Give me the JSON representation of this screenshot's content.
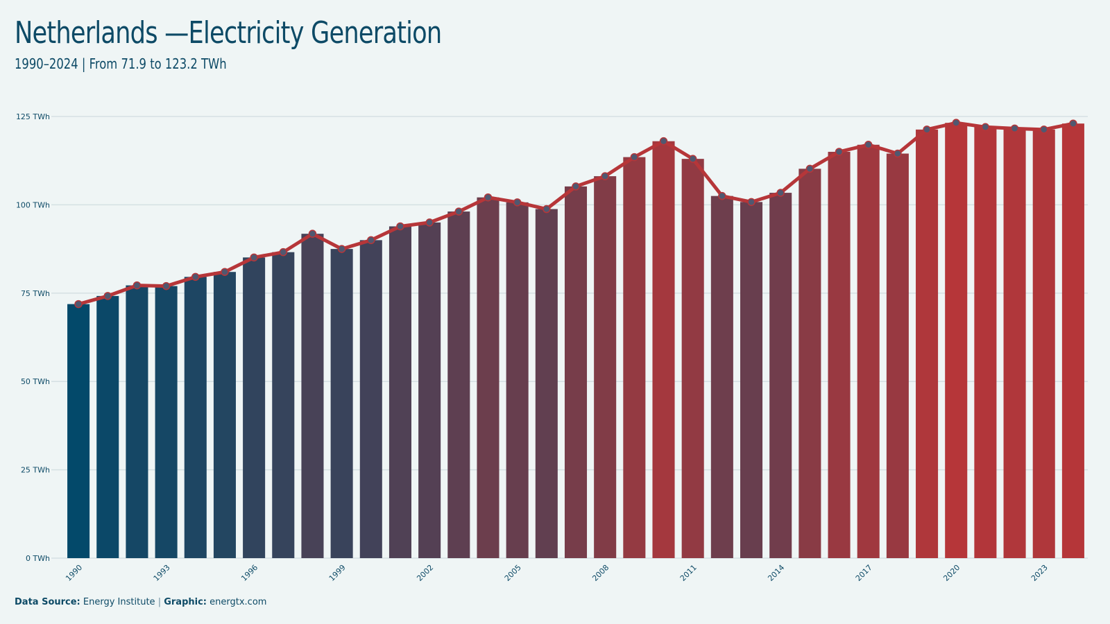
{
  "header": {
    "title": "Netherlands —Electricity Generation",
    "subtitle": "1990–2024 | From 71.9 to 123.2  TWh"
  },
  "footer": {
    "source_label": "Data Source:",
    "source_value": "Energy Institute",
    "separator": "|",
    "graphic_label": "Graphic:",
    "graphic_value": "energtx.com"
  },
  "colors": {
    "start": "#03496a",
    "end": "#b63639",
    "line": "#b63639",
    "marker_fill": "#505870",
    "gridline": "#d5e0e3",
    "text": "#0d4a66",
    "background": "#eff5f5"
  },
  "chart_data": {
    "type": "bar",
    "title": "Netherlands —Electricity Generation",
    "subtitle": "1990–2024 | From 71.9 to 123.2  TWh",
    "xlabel": "",
    "ylabel": "",
    "unit": "TWh",
    "ylim": [
      0,
      125
    ],
    "yticks": [
      0,
      25,
      50,
      75,
      100,
      125
    ],
    "ytick_labels": [
      "0 TWh",
      "25 TWh",
      "50 TWh",
      "75 TWh",
      "100 TWh",
      "125 TWh"
    ],
    "xtick_labels": [
      "1990",
      "1993",
      "1996",
      "1999",
      "2002",
      "2005",
      "2008",
      "2011",
      "2014",
      "2017",
      "2020",
      "2023"
    ],
    "grid": true,
    "categories": [
      "1990",
      "1991",
      "1992",
      "1993",
      "1994",
      "1995",
      "1996",
      "1997",
      "1998",
      "1999",
      "2000",
      "2001",
      "2002",
      "2003",
      "2004",
      "2005",
      "2006",
      "2007",
      "2008",
      "2009",
      "2010",
      "2011",
      "2012",
      "2013",
      "2014",
      "2015",
      "2016",
      "2017",
      "2018",
      "2019",
      "2020",
      "2021",
      "2022",
      "2023",
      "2024"
    ],
    "values": [
      71.9,
      74.2,
      77.2,
      77.0,
      79.6,
      81.0,
      85.1,
      86.6,
      91.8,
      87.5,
      90.0,
      93.9,
      95.0,
      98.1,
      102.1,
      100.7,
      98.8,
      105.2,
      108.1,
      113.5,
      118.0,
      113.0,
      102.5,
      100.8,
      103.4,
      110.2,
      115.0,
      117.0,
      114.5,
      121.3,
      123.2,
      122.0,
      121.6,
      121.3,
      123.0
    ]
  }
}
